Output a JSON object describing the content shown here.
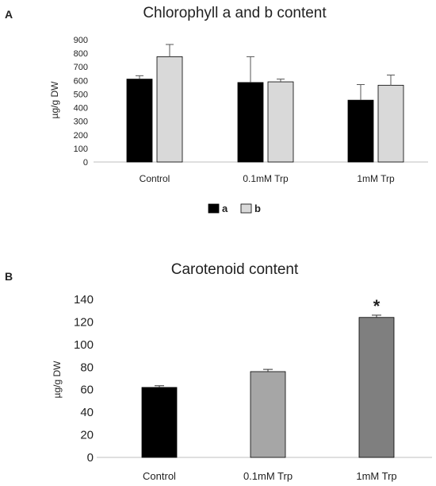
{
  "chart_data": [
    {
      "panel_label": "A",
      "type": "bar",
      "title": "Chlorophyll a and b content",
      "ylabel": "µg/g DW",
      "xlabel": "",
      "ylim": [
        0,
        900
      ],
      "yticks": [
        0,
        100,
        200,
        300,
        400,
        500,
        600,
        700,
        800,
        900
      ],
      "grid": false,
      "legend_position": "bottom",
      "categories": [
        "Control",
        "0.1mM Trp",
        "1mM Trp"
      ],
      "series": [
        {
          "name": "a",
          "color": "#000000",
          "values": [
            610,
            585,
            455
          ],
          "errors": [
            25,
            190,
            115
          ]
        },
        {
          "name": "b",
          "color": "#d9d9d9",
          "values": [
            775,
            590,
            565
          ],
          "errors": [
            90,
            20,
            75
          ]
        }
      ]
    },
    {
      "panel_label": "B",
      "type": "bar",
      "title": "Carotenoid content",
      "ylabel": "µg/g DW",
      "xlabel": "",
      "ylim": [
        0,
        140
      ],
      "yticks": [
        0,
        20,
        40,
        60,
        80,
        100,
        120,
        140
      ],
      "grid": false,
      "categories": [
        "Control",
        "0.1mM Trp",
        "1mM Trp"
      ],
      "colors": [
        "#000000",
        "#a6a6a6",
        "#7f7f7f"
      ],
      "values": [
        62,
        76,
        124
      ],
      "errors": [
        1.5,
        2,
        2
      ],
      "annotations": [
        "",
        "",
        "*"
      ]
    }
  ]
}
